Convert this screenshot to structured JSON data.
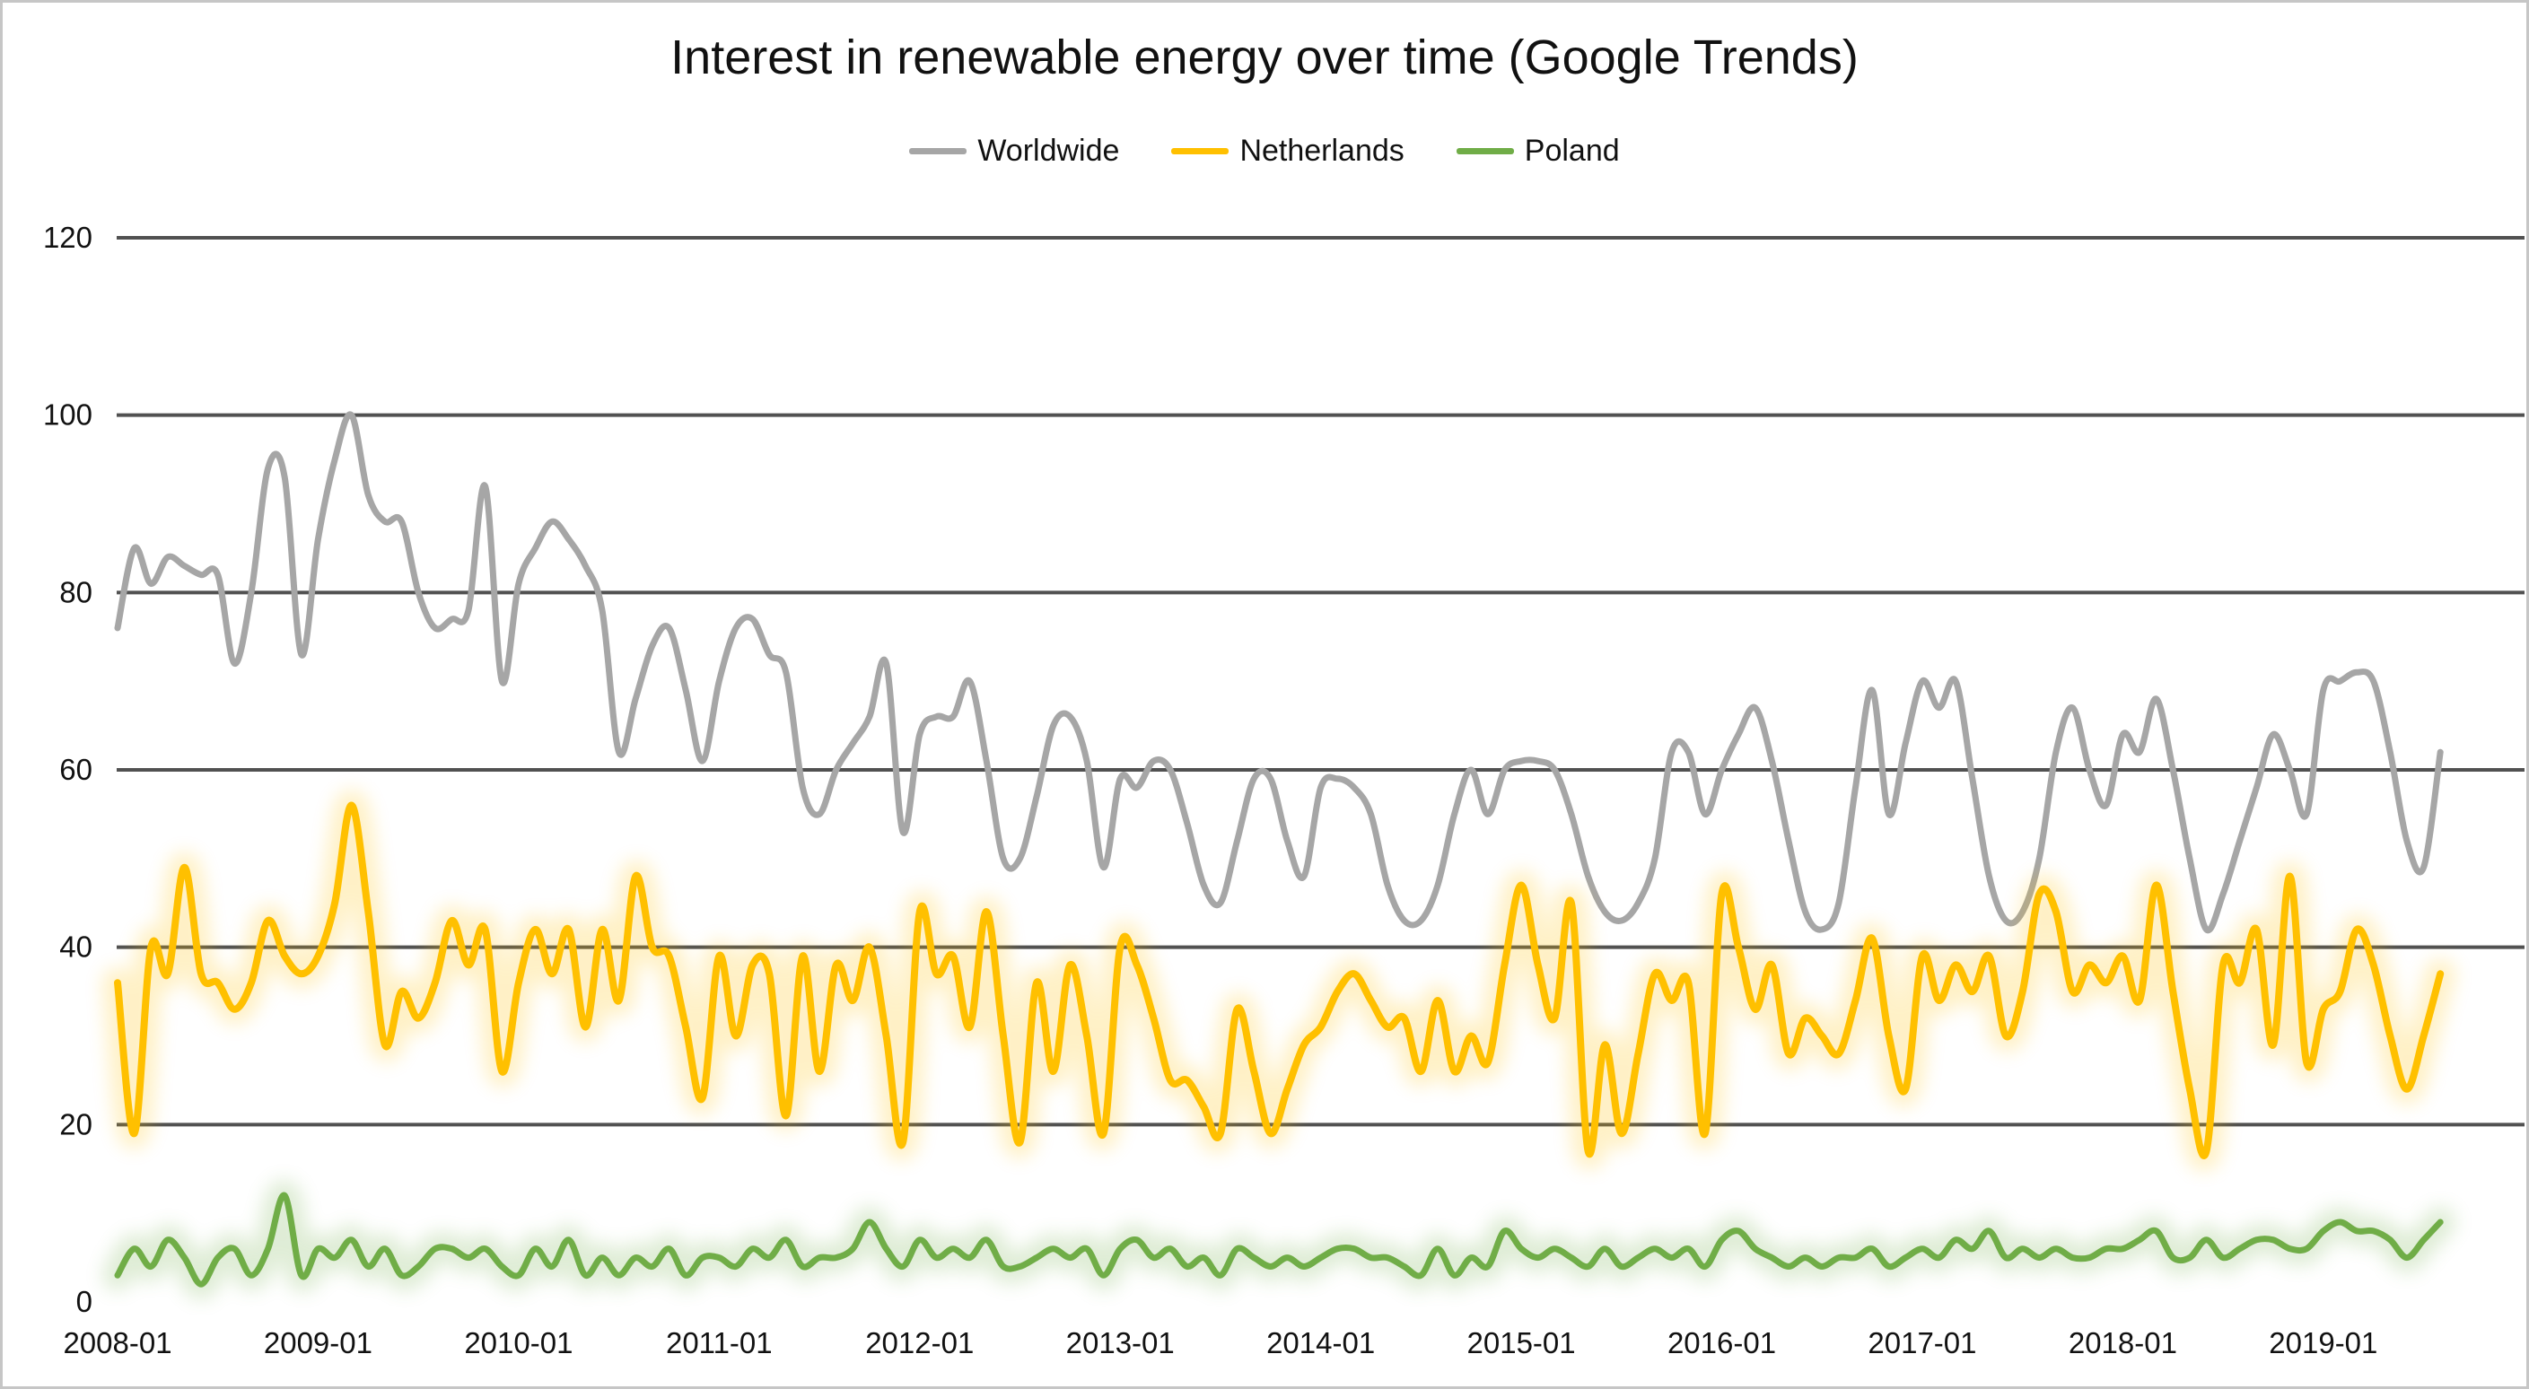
{
  "title": "Interest in renewable energy over time (Google Trends)",
  "colors": {
    "worldwide": "#a6a6a6",
    "netherlands": "#ffc000",
    "poland": "#70ad47",
    "gridline": "#3f3f3f",
    "text": "#111111",
    "frame_border": "#c6c6c6",
    "background": "#ffffff"
  },
  "chart_data": {
    "type": "line",
    "title": "Interest in renewable energy over time (Google Trends)",
    "xlabel": "",
    "ylabel": "",
    "ylim": [
      0,
      120
    ],
    "y_ticks": [
      0,
      20,
      40,
      60,
      80,
      100,
      120
    ],
    "grid": "horizontal",
    "legend_position": "top-center",
    "x_tick_labels": [
      "2008-01",
      "2009-01",
      "2010-01",
      "2011-01",
      "2012-01",
      "2013-01",
      "2014-01",
      "2015-01",
      "2016-01",
      "2017-01",
      "2018-01",
      "2019-01"
    ],
    "x_axis_span_months": 144,
    "x_start": "2008-01",
    "x_end": "2019-08",
    "points_are_monthly": true,
    "series": [
      {
        "name": "Worldwide",
        "color": "#a6a6a6",
        "glow": false,
        "values": [
          76,
          85,
          81,
          84,
          83,
          82,
          82,
          72,
          80,
          94,
          93,
          73,
          86,
          95,
          100,
          91,
          88,
          88,
          80,
          76,
          77,
          78,
          92,
          70,
          81,
          85,
          88,
          86,
          83,
          78,
          62,
          68,
          74,
          76,
          69,
          61,
          70,
          76,
          77,
          73,
          71,
          58,
          55,
          60,
          63,
          66,
          72,
          53,
          64,
          66,
          66,
          70,
          61,
          50,
          50,
          57,
          65,
          66,
          61,
          49,
          59,
          58,
          61,
          60,
          54,
          47,
          45,
          52,
          59,
          59,
          52,
          48,
          58,
          59,
          58,
          55,
          47,
          43,
          43,
          47,
          55,
          60,
          55,
          60,
          61,
          61,
          60,
          55,
          48,
          44,
          43,
          45,
          50,
          62,
          62,
          55,
          60,
          64,
          67,
          61,
          52,
          44,
          42,
          45,
          58,
          69,
          55,
          63,
          70,
          67,
          70,
          59,
          48,
          43,
          44,
          50,
          62,
          67,
          60,
          56,
          64,
          62,
          68,
          60,
          50,
          42,
          46,
          52,
          58,
          64,
          60,
          55,
          69,
          70,
          71,
          70,
          62,
          52,
          49,
          62
        ]
      },
      {
        "name": "Netherlands",
        "color": "#ffc000",
        "glow": true,
        "values": [
          36,
          19,
          40,
          37,
          49,
          37,
          36,
          33,
          36,
          43,
          39,
          37,
          39,
          45,
          56,
          44,
          29,
          35,
          32,
          36,
          43,
          38,
          42,
          26,
          36,
          42,
          37,
          42,
          31,
          42,
          34,
          48,
          40,
          39,
          31,
          23,
          39,
          30,
          38,
          37,
          21,
          39,
          26,
          38,
          34,
          40,
          30,
          18,
          44,
          37,
          39,
          31,
          44,
          30,
          18,
          36,
          26,
          38,
          30,
          19,
          40,
          38,
          32,
          25,
          25,
          22,
          19,
          33,
          26,
          19,
          24,
          29,
          31,
          35,
          37,
          34,
          31,
          32,
          26,
          34,
          26,
          30,
          27,
          38,
          47,
          38,
          32,
          45,
          17,
          29,
          19,
          28,
          37,
          34,
          36,
          19,
          46,
          40,
          33,
          38,
          28,
          32,
          30,
          28,
          34,
          41,
          30,
          24,
          39,
          34,
          38,
          35,
          39,
          30,
          35,
          46,
          44,
          35,
          38,
          36,
          39,
          34,
          47,
          35,
          24,
          17,
          38,
          36,
          42,
          29,
          48,
          27,
          33,
          35,
          42,
          38,
          30,
          24,
          30,
          37
        ]
      },
      {
        "name": "Poland",
        "color": "#70ad47",
        "glow": true,
        "values": [
          3,
          6,
          4,
          7,
          5,
          2,
          5,
          6,
          3,
          6,
          12,
          3,
          6,
          5,
          7,
          4,
          6,
          3,
          4,
          6,
          6,
          5,
          6,
          4,
          3,
          6,
          4,
          7,
          3,
          5,
          3,
          5,
          4,
          6,
          3,
          5,
          5,
          4,
          6,
          5,
          7,
          4,
          5,
          5,
          6,
          9,
          6,
          4,
          7,
          5,
          6,
          5,
          7,
          4,
          4,
          5,
          6,
          5,
          6,
          3,
          6,
          7,
          5,
          6,
          4,
          5,
          3,
          6,
          5,
          4,
          5,
          4,
          5,
          6,
          6,
          5,
          5,
          4,
          3,
          6,
          3,
          5,
          4,
          8,
          6,
          5,
          6,
          5,
          4,
          6,
          4,
          5,
          6,
          5,
          6,
          4,
          7,
          8,
          6,
          5,
          4,
          5,
          4,
          5,
          5,
          6,
          4,
          5,
          6,
          5,
          7,
          6,
          8,
          5,
          6,
          5,
          6,
          5,
          5,
          6,
          6,
          7,
          8,
          5,
          5,
          7,
          5,
          6,
          7,
          7,
          6,
          6,
          8,
          9,
          8,
          8,
          7,
          5,
          7,
          9
        ]
      }
    ]
  }
}
